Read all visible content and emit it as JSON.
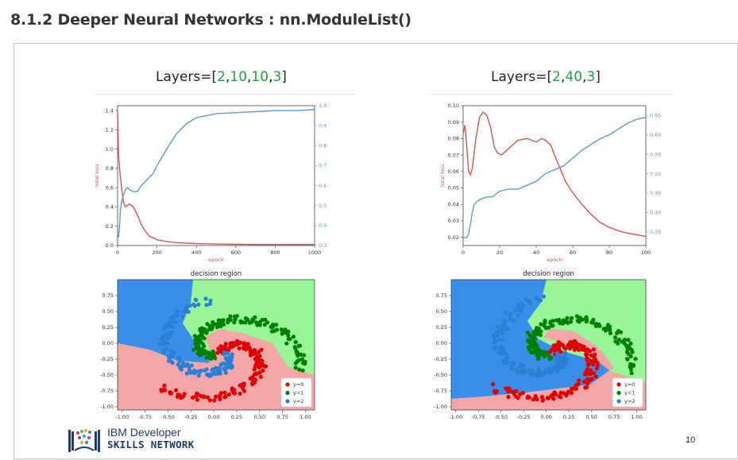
{
  "heading": "8.1.2 Deeper Neural Networks : nn.ModuleList()",
  "slide": {
    "left_title": {
      "prefix": "Layers=[",
      "vals": [
        "2",
        "10",
        "10",
        "3"
      ],
      "suffix": "]"
    },
    "right_title": {
      "prefix": "Layers=[",
      "vals": [
        "2",
        "40",
        "3"
      ],
      "suffix": "]"
    },
    "logo": {
      "line1": "IBM Developer",
      "line2": "SKILLS NETWORK"
    },
    "page_number": "10"
  },
  "colors": {
    "loss": "#d9534f",
    "accuracy": "#5b9bd5",
    "red_region": "#f4a6a6",
    "green_region": "#98f598",
    "blue_region": "#3a8eea",
    "title_green": "#1fa33a"
  },
  "chart_data": [
    {
      "type": "line",
      "xlabel": "epoch",
      "ylabel": "total loss",
      "x_ticks": [
        "0",
        "200",
        "400",
        "600",
        "800",
        "1000"
      ],
      "y_ticks_left": [
        "0.0",
        "0.2",
        "0.4",
        "0.6",
        "0.8",
        "1.0",
        "1.2",
        "1.4"
      ],
      "y_ticks_right": [
        "0.3",
        "0.4",
        "0.5",
        "0.6",
        "0.7",
        "0.8",
        "0.9",
        "1.0"
      ],
      "xlim": [
        0,
        1000
      ],
      "ylim_left": [
        0,
        1.45
      ],
      "ylim_right": [
        0.3,
        1.0
      ],
      "series": [
        {
          "axis": "left",
          "color": "#d9534f",
          "x": [
            0,
            5,
            10,
            20,
            30,
            40,
            60,
            80,
            100,
            120,
            140,
            160,
            180,
            200,
            250,
            300,
            400,
            500,
            600,
            700,
            800,
            900,
            1000
          ],
          "y": [
            1.4,
            0.95,
            0.8,
            0.6,
            0.45,
            0.4,
            0.43,
            0.4,
            0.32,
            0.22,
            0.15,
            0.1,
            0.08,
            0.06,
            0.04,
            0.03,
            0.02,
            0.015,
            0.012,
            0.01,
            0.01,
            0.01,
            0.01
          ]
        },
        {
          "axis": "right",
          "color": "#5b9bd5",
          "x": [
            0,
            5,
            10,
            15,
            20,
            30,
            40,
            50,
            60,
            80,
            100,
            120,
            150,
            180,
            200,
            230,
            260,
            300,
            350,
            400,
            450,
            500,
            600,
            700,
            800,
            900,
            1000
          ],
          "y": [
            0.38,
            0.34,
            0.4,
            0.48,
            0.52,
            0.55,
            0.58,
            0.59,
            0.58,
            0.57,
            0.57,
            0.6,
            0.63,
            0.66,
            0.7,
            0.75,
            0.8,
            0.86,
            0.91,
            0.94,
            0.95,
            0.96,
            0.965,
            0.97,
            0.975,
            0.975,
            0.98
          ]
        }
      ]
    },
    {
      "type": "line",
      "xlabel": "epoch",
      "ylabel": "total loss",
      "x_ticks": [
        "0",
        "20",
        "40",
        "60",
        "80",
        "100"
      ],
      "y_ticks_left": [
        "0.02",
        "0.03",
        "0.04",
        "0.05",
        "0.06",
        "0.07",
        "0.08",
        "0.09",
        "0.10"
      ],
      "y_ticks_right": [
        "0.35",
        "0.40",
        "0.45",
        "0.50",
        "0.55",
        "0.60",
        "0.65"
      ],
      "xlim": [
        0,
        100
      ],
      "ylim_left": [
        0.015,
        0.1
      ],
      "ylim_right": [
        0.315,
        0.675
      ],
      "series": [
        {
          "axis": "left",
          "color": "#d9534f",
          "x": [
            0,
            1,
            2,
            3,
            4,
            5,
            7,
            9,
            11,
            13,
            15,
            17,
            19,
            21,
            25,
            30,
            35,
            40,
            43,
            45,
            48,
            50,
            53,
            56,
            60,
            65,
            70,
            75,
            80,
            85,
            90,
            95,
            100
          ],
          "y": [
            0.083,
            0.088,
            0.075,
            0.06,
            0.058,
            0.062,
            0.08,
            0.093,
            0.096,
            0.094,
            0.087,
            0.075,
            0.071,
            0.07,
            0.074,
            0.079,
            0.08,
            0.078,
            0.08,
            0.079,
            0.076,
            0.07,
            0.062,
            0.054,
            0.047,
            0.04,
            0.034,
            0.029,
            0.026,
            0.024,
            0.0225,
            0.0215,
            0.0205
          ]
        },
        {
          "axis": "right",
          "color": "#5b9bd5",
          "x": [
            0,
            2,
            3,
            4,
            5,
            6,
            8,
            10,
            13,
            16,
            20,
            25,
            30,
            35,
            40,
            45,
            50,
            55,
            60,
            65,
            70,
            75,
            80,
            85,
            90,
            95,
            100
          ],
          "y": [
            0.335,
            0.335,
            0.345,
            0.37,
            0.4,
            0.42,
            0.43,
            0.435,
            0.44,
            0.44,
            0.455,
            0.46,
            0.46,
            0.47,
            0.48,
            0.5,
            0.51,
            0.52,
            0.54,
            0.56,
            0.575,
            0.59,
            0.6,
            0.615,
            0.63,
            0.64,
            0.645
          ]
        }
      ]
    },
    {
      "type": "scatter",
      "title": "decision region",
      "x_ticks": [
        "-1.00",
        "-0.75",
        "-0.50",
        "-0.25",
        "0.00",
        "0.25",
        "0.50",
        "0.75",
        "1.00"
      ],
      "y_ticks": [
        "-1.00",
        "-0.75",
        "-0.50",
        "-0.25",
        "0.00",
        "0.25",
        "0.50",
        "0.75"
      ],
      "xlim": [
        -1.05,
        1.1
      ],
      "ylim": [
        -1.05,
        1.0
      ],
      "legend": {
        "position": "bottom-right",
        "entries": [
          {
            "label": "y=0",
            "color": "#e00000"
          },
          {
            "label": "y=1",
            "color": "#008000"
          },
          {
            "label": "y=2",
            "color": "#2a7fd4"
          }
        ]
      },
      "series": [
        {
          "name": "y=0",
          "color": "#e00000",
          "center": [
            0.1,
            -0.15
          ],
          "r_start": 0.02,
          "r_end": 0.85,
          "theta_start_deg": 90,
          "theta_sweep_deg": -230
        },
        {
          "name": "y=1",
          "color": "#008000",
          "center": [
            0.1,
            -0.15
          ],
          "r_start": 0.1,
          "r_end": 0.85,
          "theta_start_deg": 210,
          "theta_sweep_deg": -230
        },
        {
          "name": "y=2",
          "color": "#2a7fd4",
          "center": [
            0.1,
            -0.15
          ],
          "r_start": 0.05,
          "r_end": 0.85,
          "theta_start_deg": 330,
          "theta_sweep_deg": -230
        }
      ]
    },
    {
      "type": "scatter",
      "title": "decision region",
      "x_ticks": [
        "-1.00",
        "-0.75",
        "-0.50",
        "-0.25",
        "0.00",
        "0.25",
        "0.50",
        "0.75",
        "1.00"
      ],
      "y_ticks": [
        "-1.00",
        "-0.75",
        "-0.50",
        "-0.25",
        "0.00",
        "0.25",
        "0.50",
        "0.75"
      ],
      "xlim": [
        -1.05,
        1.1
      ],
      "ylim": [
        -1.05,
        1.0
      ],
      "legend": {
        "position": "bottom-right",
        "entries": [
          {
            "label": "y=0",
            "color": "#e00000"
          },
          {
            "label": "y=1",
            "color": "#008000"
          },
          {
            "label": "y=2",
            "color": "#2a7fd4"
          }
        ]
      },
      "series": [
        {
          "name": "y=0",
          "color": "#e00000",
          "center": [
            0.1,
            -0.15
          ],
          "r_start": 0.02,
          "r_end": 0.85,
          "theta_start_deg": 90,
          "theta_sweep_deg": -230
        },
        {
          "name": "y=1",
          "color": "#008000",
          "center": [
            0.1,
            -0.15
          ],
          "r_start": 0.1,
          "r_end": 0.85,
          "theta_start_deg": 210,
          "theta_sweep_deg": -230
        },
        {
          "name": "y=2",
          "color": "#2a7fd4",
          "center": [
            0.1,
            -0.15
          ],
          "r_start": 0.05,
          "r_end": 0.85,
          "theta_start_deg": 330,
          "theta_sweep_deg": -230
        }
      ]
    }
  ]
}
